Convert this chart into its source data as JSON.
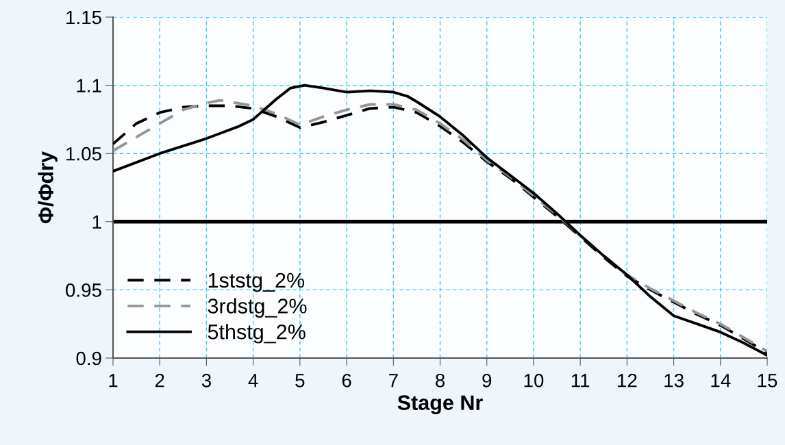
{
  "chart_data": {
    "type": "line",
    "xlabel": "Stage Nr",
    "ylabel": "Φ/Φdry",
    "xlim": [
      1,
      15
    ],
    "xticks": [
      1,
      2,
      3,
      4,
      5,
      6,
      7,
      8,
      9,
      10,
      11,
      12,
      13,
      14,
      15
    ],
    "ylim": [
      0.9,
      1.15
    ],
    "yticks": [
      0.9,
      0.95,
      1,
      1.05,
      1.1,
      1.15
    ],
    "grid": true,
    "legend": "bottom left",
    "marker": "none",
    "ref_lines": [
      {
        "axis": "y",
        "value": 1,
        "color": "#000000",
        "line_style": "solid"
      }
    ],
    "series": [
      {
        "name": "1ststg_2%",
        "color": "#000000",
        "line_style": "dashed",
        "x": [
          1,
          1.5,
          2,
          2.5,
          3,
          3.5,
          4,
          4.5,
          5,
          5.5,
          6,
          6.5,
          7,
          7.5,
          8,
          8.5,
          9,
          9.5,
          10,
          10.5,
          11,
          11.5,
          12,
          12.5,
          13,
          13.5,
          14,
          14.5,
          15
        ],
        "values": [
          1.057,
          1.072,
          1.08,
          1.084,
          1.085,
          1.085,
          1.083,
          1.077,
          1.069,
          1.073,
          1.078,
          1.083,
          1.084,
          1.08,
          1.07,
          1.058,
          1.044,
          1.032,
          1.018,
          1.004,
          0.989,
          0.974,
          0.96,
          0.95,
          0.941,
          0.932,
          0.924,
          0.914,
          0.904
        ]
      },
      {
        "name": "3rdstg_2%",
        "color": "#969696",
        "line_style": "dashed",
        "x": [
          1,
          1.5,
          2,
          2.5,
          3,
          3.3,
          4,
          4.5,
          5,
          5.5,
          6,
          6.5,
          7,
          7.5,
          8,
          8.5,
          9,
          9.5,
          10,
          10.5,
          11,
          11.5,
          12,
          12.5,
          13,
          13.5,
          14,
          14.5,
          15
        ],
        "values": [
          1.052,
          1.062,
          1.072,
          1.082,
          1.087,
          1.089,
          1.085,
          1.079,
          1.071,
          1.077,
          1.082,
          1.086,
          1.086,
          1.082,
          1.072,
          1.06,
          1.045,
          1.033,
          1.019,
          1.005,
          0.99,
          0.975,
          0.961,
          0.951,
          0.942,
          0.933,
          0.925,
          0.915,
          0.905
        ]
      },
      {
        "name": "5thstg_2%",
        "color": "#000000",
        "line_style": "solid",
        "x": [
          1,
          2,
          3,
          3.7,
          4,
          4.5,
          4.8,
          5.1,
          5.5,
          6,
          6.5,
          7,
          7.3,
          7.5,
          8,
          8.5,
          9,
          9.5,
          10,
          10.5,
          11,
          11.5,
          12,
          12.5,
          13,
          13.5,
          14,
          14.5,
          15
        ],
        "values": [
          1.037,
          1.05,
          1.061,
          1.07,
          1.075,
          1.09,
          1.098,
          1.1,
          1.098,
          1.095,
          1.096,
          1.095,
          1.092,
          1.088,
          1.077,
          1.063,
          1.047,
          1.034,
          1.021,
          1.006,
          0.99,
          0.975,
          0.961,
          0.945,
          0.931,
          0.925,
          0.919,
          0.911,
          0.902
        ]
      }
    ]
  }
}
